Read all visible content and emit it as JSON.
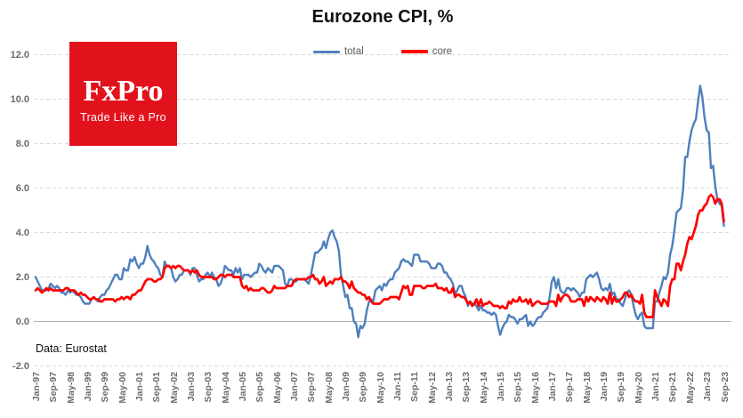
{
  "header": {
    "title": "Eurozone CPI, %"
  },
  "logo": {
    "name": "FxPro",
    "tagline": "Trade Like a Pro",
    "bg_color": "#E2121C"
  },
  "source_note": "Data: Eurostat",
  "colors": {
    "total_line": "#4E80BD",
    "core_line": "#FE0000",
    "gridline": "#d9d9d9",
    "zero_line": "#b3b3b3",
    "axis_text": "#6b6b6b"
  },
  "chart_data": {
    "type": "line",
    "title": "Eurozone CPI, %",
    "x_start": "Jan-1997",
    "x_end": "Sep-2023",
    "frequency": "monthly",
    "ylim": [
      -2,
      12
    ],
    "grid": "horizontal-dashed",
    "legend_position": "top-center",
    "y_tick_values": [
      12,
      10,
      8,
      6,
      4,
      2,
      0,
      -2
    ],
    "y_tick_labels": [
      "12.0",
      "10.0",
      "8.0",
      "6.0",
      "4.0",
      "2.0",
      "0.0",
      "-2.0"
    ],
    "x_tick_every_n_months": 8,
    "x_tick_labels": [
      "Jan-97",
      "Sep-97",
      "May-98",
      "Jan-99",
      "Sep-99",
      "May-00",
      "Jan-01",
      "Sep-01",
      "May-02",
      "Jan-03",
      "Sep-03",
      "May-04",
      "Jan-05",
      "Sep-05",
      "May-06",
      "Jan-07",
      "Sep-07",
      "May-08",
      "Jan-09",
      "Sep-09",
      "May-10",
      "Jan-11",
      "Sep-11",
      "May-12",
      "Jan-13",
      "Sep-13",
      "May-14",
      "Jan-15",
      "Sep-15",
      "May-16",
      "Jan-17",
      "Sep-17",
      "May-18",
      "Jan-19",
      "Sep-19",
      "May-20",
      "Jan-21",
      "Sep-21",
      "May-22",
      "Jan-23",
      "Sep-23"
    ],
    "series": [
      {
        "name": "total",
        "color": "#4E80BD",
        "values": [
          2.0,
          1.8,
          1.6,
          1.4,
          1.4,
          1.4,
          1.5,
          1.7,
          1.6,
          1.5,
          1.6,
          1.5,
          1.3,
          1.3,
          1.2,
          1.4,
          1.3,
          1.4,
          1.3,
          1.2,
          1.2,
          1.1,
          0.9,
          0.8,
          0.8,
          0.8,
          1.0,
          1.1,
          1.0,
          0.9,
          1.1,
          1.2,
          1.2,
          1.4,
          1.5,
          1.7,
          1.9,
          2.1,
          2.1,
          1.9,
          1.9,
          2.4,
          2.3,
          2.3,
          2.8,
          2.7,
          2.9,
          2.6,
          2.4,
          2.6,
          2.6,
          2.9,
          3.4,
          3.0,
          2.8,
          2.7,
          2.5,
          2.4,
          2.1,
          2.0,
          2.7,
          2.5,
          2.5,
          2.4,
          2.0,
          1.8,
          1.9,
          2.1,
          2.1,
          2.3,
          2.3,
          2.3,
          2.1,
          2.4,
          2.4,
          2.1,
          1.8,
          1.9,
          1.9,
          2.1,
          2.2,
          2.0,
          2.2,
          2.0,
          1.9,
          1.6,
          1.7,
          2.0,
          2.5,
          2.4,
          2.3,
          2.3,
          2.1,
          2.4,
          2.2,
          2.4,
          1.9,
          2.1,
          2.1,
          2.1,
          2.0,
          2.1,
          2.2,
          2.2,
          2.6,
          2.5,
          2.3,
          2.2,
          2.4,
          2.3,
          2.2,
          2.5,
          2.5,
          2.5,
          2.4,
          2.3,
          1.7,
          1.6,
          1.9,
          1.9,
          1.8,
          1.8,
          1.9,
          1.9,
          1.9,
          1.9,
          1.8,
          1.7,
          2.1,
          2.6,
          3.1,
          3.1,
          3.2,
          3.3,
          3.6,
          3.3,
          3.7,
          4.0,
          4.1,
          3.8,
          3.6,
          3.2,
          2.1,
          1.6,
          1.1,
          1.2,
          0.6,
          0.6,
          0.0,
          -0.1,
          -0.7,
          -0.2,
          -0.3,
          -0.1,
          0.5,
          0.9,
          1.0,
          0.9,
          1.4,
          1.5,
          1.6,
          1.4,
          1.7,
          1.6,
          1.8,
          1.9,
          1.9,
          2.2,
          2.3,
          2.4,
          2.7,
          2.8,
          2.7,
          2.7,
          2.6,
          2.5,
          3.0,
          3.0,
          3.0,
          2.7,
          2.7,
          2.7,
          2.7,
          2.6,
          2.4,
          2.4,
          2.4,
          2.6,
          2.6,
          2.5,
          2.2,
          2.2,
          2.0,
          1.9,
          1.7,
          1.2,
          1.4,
          1.6,
          1.6,
          1.3,
          1.1,
          0.7,
          0.9,
          0.8,
          0.8,
          0.7,
          0.5,
          0.7,
          0.5,
          0.5,
          0.4,
          0.4,
          0.3,
          0.4,
          0.3,
          -0.2,
          -0.6,
          -0.3,
          -0.1,
          0.0,
          0.3,
          0.2,
          0.2,
          0.1,
          -0.1,
          0.1,
          0.1,
          0.2,
          0.3,
          -0.2,
          0.0,
          -0.2,
          -0.1,
          0.1,
          0.2,
          0.2,
          0.4,
          0.5,
          0.6,
          1.1,
          1.8,
          2.0,
          1.5,
          1.9,
          1.4,
          1.3,
          1.3,
          1.5,
          1.5,
          1.4,
          1.5,
          1.4,
          1.3,
          1.1,
          1.3,
          1.3,
          1.9,
          2.0,
          2.1,
          2.0,
          2.1,
          2.2,
          1.9,
          1.5,
          1.4,
          1.5,
          1.4,
          1.7,
          1.2,
          1.3,
          1.0,
          1.0,
          0.8,
          0.7,
          1.0,
          1.3,
          1.4,
          1.2,
          0.7,
          0.3,
          0.1,
          0.3,
          0.4,
          -0.2,
          -0.3,
          -0.3,
          -0.3,
          -0.3,
          0.9,
          0.9,
          1.3,
          1.6,
          2.0,
          1.9,
          2.2,
          3.0,
          3.4,
          4.1,
          4.9,
          5.0,
          5.1,
          5.9,
          7.4,
          7.4,
          8.1,
          8.6,
          8.9,
          9.1,
          9.9,
          10.6,
          10.1,
          9.2,
          8.6,
          8.5,
          6.9,
          7.0,
          6.1,
          5.5,
          5.3,
          5.2,
          4.3
        ]
      },
      {
        "name": "core",
        "color": "#FE0000",
        "values": [
          1.4,
          1.5,
          1.4,
          1.3,
          1.4,
          1.5,
          1.4,
          1.5,
          1.4,
          1.4,
          1.4,
          1.4,
          1.4,
          1.4,
          1.5,
          1.5,
          1.4,
          1.4,
          1.4,
          1.3,
          1.2,
          1.3,
          1.2,
          1.2,
          1.1,
          1.0,
          1.0,
          1.1,
          1.0,
          1.0,
          0.9,
          0.9,
          1.0,
          1.0,
          1.0,
          1.0,
          1.0,
          0.9,
          1.0,
          1.0,
          1.1,
          1.0,
          1.1,
          1.1,
          1.0,
          1.2,
          1.2,
          1.3,
          1.4,
          1.4,
          1.6,
          1.8,
          1.9,
          1.9,
          1.9,
          1.8,
          1.8,
          1.9,
          1.9,
          2.0,
          2.4,
          2.5,
          2.5,
          2.4,
          2.5,
          2.4,
          2.5,
          2.5,
          2.4,
          2.3,
          2.3,
          2.3,
          2.2,
          2.3,
          2.2,
          2.3,
          2.1,
          2.0,
          2.0,
          2.0,
          2.0,
          2.0,
          2.0,
          1.9,
          1.9,
          2.0,
          2.1,
          2.1,
          2.0,
          2.1,
          2.1,
          2.1,
          2.0,
          2.0,
          2.0,
          2.0,
          1.6,
          1.5,
          1.6,
          1.4,
          1.5,
          1.4,
          1.4,
          1.4,
          1.4,
          1.5,
          1.5,
          1.4,
          1.3,
          1.3,
          1.4,
          1.6,
          1.5,
          1.5,
          1.5,
          1.5,
          1.5,
          1.6,
          1.6,
          1.6,
          1.8,
          1.9,
          1.9,
          1.9,
          1.9,
          1.9,
          1.9,
          2.0,
          2.0,
          2.1,
          1.9,
          1.9,
          1.7,
          1.8,
          2.0,
          1.6,
          1.7,
          1.8,
          1.7,
          1.9,
          1.9,
          1.9,
          2.0,
          1.8,
          1.8,
          1.7,
          1.5,
          1.8,
          1.5,
          1.4,
          1.3,
          1.3,
          1.2,
          1.2,
          1.0,
          1.1,
          0.9,
          0.8,
          0.8,
          0.8,
          0.8,
          0.9,
          1.0,
          1.0,
          1.0,
          1.1,
          1.1,
          1.1,
          1.1,
          1.0,
          1.3,
          1.6,
          1.5,
          1.6,
          1.2,
          1.2,
          1.6,
          1.6,
          1.6,
          1.6,
          1.5,
          1.5,
          1.6,
          1.6,
          1.6,
          1.6,
          1.7,
          1.5,
          1.5,
          1.5,
          1.4,
          1.5,
          1.3,
          1.3,
          1.5,
          1.1,
          1.2,
          1.2,
          1.1,
          1.1,
          1.0,
          0.8,
          0.9,
          0.7,
          0.8,
          1.0,
          0.7,
          1.0,
          0.7,
          0.8,
          0.8,
          0.9,
          0.8,
          0.7,
          0.7,
          0.7,
          0.6,
          0.7,
          0.6,
          0.6,
          0.9,
          0.8,
          1.0,
          0.9,
          0.9,
          1.1,
          0.9,
          0.9,
          1.0,
          0.8,
          1.0,
          0.7,
          0.8,
          0.9,
          0.9,
          0.8,
          0.8,
          0.8,
          0.8,
          0.9,
          0.9,
          0.9,
          0.7,
          1.2,
          0.9,
          1.1,
          1.2,
          1.2,
          1.1,
          0.9,
          0.9,
          0.9,
          1.0,
          1.0,
          1.0,
          0.7,
          1.1,
          0.9,
          1.1,
          1.0,
          0.9,
          1.1,
          1.0,
          0.9,
          1.1,
          1.0,
          0.8,
          1.3,
          0.8,
          1.1,
          0.9,
          0.9,
          1.0,
          1.1,
          1.3,
          1.3,
          1.1,
          1.2,
          1.0,
          0.9,
          0.9,
          0.8,
          1.2,
          0.4,
          0.2,
          0.2,
          0.2,
          0.2,
          1.4,
          1.1,
          0.9,
          0.7,
          1.0,
          0.9,
          0.7,
          1.6,
          1.9,
          1.9,
          2.6,
          2.6,
          2.3,
          2.7,
          3.0,
          3.5,
          3.8,
          3.7,
          4.0,
          4.3,
          4.8,
          5.0,
          5.0,
          5.2,
          5.3,
          5.6,
          5.7,
          5.6,
          5.3,
          5.5,
          5.5,
          5.3,
          4.5
        ]
      }
    ]
  }
}
